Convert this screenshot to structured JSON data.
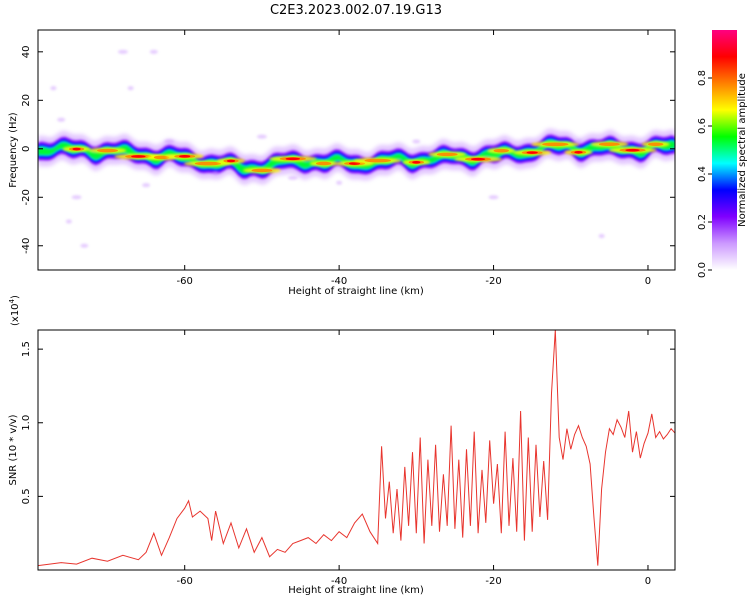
{
  "figure": {
    "title": "C2E3.2023.002.07.19.G13"
  },
  "chart_data": [
    {
      "type": "heatmap",
      "xlabel": "Height of straight line (km)",
      "ylabel": "Frequency (Hz)",
      "xlim": [
        -79,
        3.5
      ],
      "ylim": [
        -50,
        49
      ],
      "xticks": [
        -60,
        -40,
        -20,
        0
      ],
      "yticks": [
        -40,
        -20,
        0,
        20,
        40
      ],
      "xtick_labels": [
        "-60",
        "-40",
        "-20",
        "0"
      ],
      "ytick_labels": [
        "-40",
        "-20",
        "0",
        "20",
        "40"
      ],
      "ridge": {
        "x": [
          -78,
          -70,
          -60,
          -52,
          -45,
          -38,
          -33,
          -28,
          -22,
          -18,
          -12,
          -6,
          0,
          3
        ],
        "y": [
          0,
          -1,
          -4,
          -8,
          -5,
          -6,
          -5,
          -4,
          -3,
          -2,
          1,
          0,
          0,
          1
        ]
      },
      "colorbar": {
        "label": "Normalized spectral amplitude",
        "range": [
          0,
          1
        ],
        "ticks": [
          0.0,
          0.2,
          0.4,
          0.6,
          0.8
        ],
        "tick_labels": [
          "0.0",
          "0.2",
          "0.4",
          "0.6",
          "0.8"
        ],
        "colors": [
          "#ffffff",
          "#cc99ff",
          "#8000ff",
          "#0000ff",
          "#00ffff",
          "#00ff00",
          "#ffff00",
          "#ff8000",
          "#ff0000",
          "#ff0080"
        ]
      }
    },
    {
      "type": "line",
      "xlabel": "Height of straight line (km)",
      "ylabel": "SNR (10 * v/v)",
      "y_multiplier": "(x10",
      "y_multiplier_exp": "4",
      "xlim": [
        -79,
        3.5
      ],
      "ylim": [
        0,
        16300
      ],
      "xticks": [
        -60,
        -40,
        -20,
        0
      ],
      "yticks": [
        5000,
        10000,
        15000
      ],
      "xtick_labels": [
        "-60",
        "-40",
        "-20",
        "0"
      ],
      "ytick_labels": [
        "0.5",
        "1.0",
        "1.5"
      ],
      "series": [
        {
          "color": "#e8352e",
          "x": [
            -79,
            -76,
            -74,
            -72,
            -70,
            -68,
            -66,
            -65,
            -64,
            -63,
            -62,
            -61,
            -60,
            -59.5,
            -59,
            -58,
            -57,
            -56.5,
            -56,
            -55,
            -54,
            -53,
            -52,
            -51,
            -50,
            -49,
            -48,
            -47,
            -46,
            -45,
            -44,
            -43,
            -42,
            -41,
            -40,
            -39,
            -38,
            -37,
            -36,
            -35,
            -34.5,
            -34,
            -33.5,
            -33,
            -32.5,
            -32,
            -31.5,
            -31,
            -30.5,
            -30,
            -29.5,
            -29,
            -28.5,
            -28,
            -27.5,
            -27,
            -26.5,
            -26,
            -25.5,
            -25,
            -24.5,
            -24,
            -23.5,
            -23,
            -22.5,
            -22,
            -21.5,
            -21,
            -20.5,
            -20,
            -19.5,
            -19,
            -18.5,
            -18,
            -17.5,
            -17,
            -16.5,
            -16,
            -15.5,
            -15,
            -14.5,
            -14,
            -13.5,
            -13,
            -12.5,
            -12,
            -11.5,
            -11,
            -10.5,
            -10,
            -9.5,
            -9,
            -8.5,
            -8,
            -7.5,
            -7,
            -6.5,
            -6,
            -5.5,
            -5,
            -4.5,
            -4,
            -3.5,
            -3,
            -2.5,
            -2,
            -1.5,
            -1,
            -0.5,
            0,
            0.5,
            1,
            1.5,
            2,
            2.5,
            3,
            3.5
          ],
          "y": [
            300,
            500,
            400,
            800,
            600,
            1000,
            700,
            1200,
            2500,
            1000,
            2200,
            3500,
            4200,
            4700,
            3600,
            4000,
            3500,
            2000,
            4000,
            1800,
            3200,
            1500,
            2800,
            1200,
            2200,
            900,
            1400,
            1200,
            1800,
            2000,
            2200,
            1800,
            2400,
            2000,
            2600,
            2200,
            3200,
            3800,
            2600,
            1800,
            8400,
            3500,
            6000,
            2500,
            5500,
            2000,
            7000,
            3000,
            8000,
            2500,
            9000,
            1800,
            7500,
            3000,
            8500,
            2600,
            6500,
            3000,
            9800,
            2800,
            7500,
            2200,
            8200,
            3000,
            9400,
            2500,
            6800,
            3200,
            8800,
            4500,
            7200,
            2500,
            9400,
            3000,
            7600,
            2600,
            10800,
            2000,
            9000,
            2600,
            8500,
            3600,
            7400,
            3400,
            12000,
            16300,
            9000,
            7500,
            9600,
            8200,
            9200,
            9800,
            9000,
            8400,
            7200,
            3600,
            300,
            5500,
            8000,
            9600,
            9200,
            10200,
            9700,
            9000,
            10800,
            8000,
            9400,
            7600,
            8600,
            9300,
            10600,
            9000,
            9400,
            8900,
            9200,
            9600,
            9300
          ]
        }
      ]
    }
  ]
}
